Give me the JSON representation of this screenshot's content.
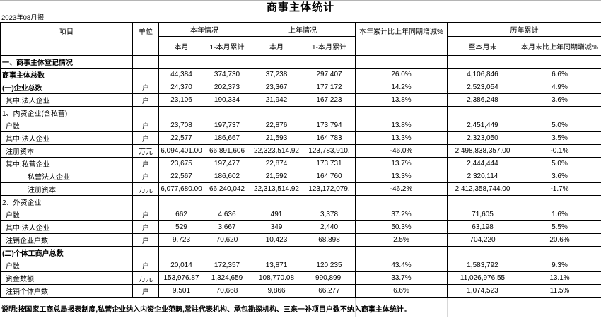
{
  "page": {
    "title": "商事主体统计",
    "period": "2023年08月报",
    "note": "说明:按国家工商总局报表制度,私营企业纳入内资企业范畴,常驻代表机构、承包勘探机构、三来一补项目户数不纳入商事主体统计。"
  },
  "table": {
    "headers": {
      "item": "项目",
      "unit": "单位",
      "this_year": "本年情况",
      "last_year": "上年情况",
      "month": "本月",
      "month_cumulative": "1-本月累计",
      "yoy_change": "本年累计比上年同期增减%",
      "historical": "历年累计",
      "to_month_end": "至本月末",
      "month_end_yoy_change": "本月末比上年同期增减%"
    },
    "rows": [
      {
        "label": "一、商事主体登记情况",
        "unit": "",
        "values": [
          "",
          "",
          "",
          "",
          "",
          "",
          ""
        ],
        "bold": true,
        "indent": 0
      },
      {
        "label": "商事主体总数",
        "unit": "",
        "values": [
          "44,384",
          "374,730",
          "37,238",
          "297,407",
          "26.0%",
          "4,106,846",
          "6.6%"
        ],
        "bold": true,
        "indent": 0
      },
      {
        "label": "(一)企业总数",
        "unit": "户",
        "values": [
          "24,370",
          "202,373",
          "23,367",
          "177,172",
          "14.2%",
          "2,523,054",
          "4.9%"
        ],
        "bold": true,
        "indent": 0
      },
      {
        "label": "其中:法人企业",
        "unit": "户",
        "values": [
          "23,106",
          "190,334",
          "21,942",
          "167,223",
          "13.8%",
          "2,386,248",
          "3.6%"
        ],
        "bold": false,
        "indent": 1
      },
      {
        "label": "1、内资企业(含私营)",
        "unit": "",
        "values": [
          "",
          "",
          "",
          "",
          "",
          "",
          ""
        ],
        "bold": false,
        "indent": 0
      },
      {
        "label": "户数",
        "unit": "户",
        "values": [
          "23,708",
          "197,737",
          "22,876",
          "173,794",
          "13.8%",
          "2,451,449",
          "5.0%"
        ],
        "bold": false,
        "indent": 1
      },
      {
        "label": "其中:法人企业",
        "unit": "户",
        "values": [
          "22,577",
          "186,667",
          "21,593",
          "164,783",
          "13.3%",
          "2,323,050",
          "3.5%"
        ],
        "bold": false,
        "indent": 1
      },
      {
        "label": "注册资本",
        "unit": "万元",
        "values": [
          "6,094,401.00",
          "66,891,606",
          "22,323,514.92",
          "123,783,910.",
          "-46.0%",
          "2,498,838,357.00",
          "-0.1%"
        ],
        "bold": false,
        "indent": 1
      },
      {
        "label": "其中:私营企业",
        "unit": "户",
        "values": [
          "23,675",
          "197,477",
          "22,874",
          "173,731",
          "13.7%",
          "2,444,444",
          "5.0%"
        ],
        "bold": false,
        "indent": 1
      },
      {
        "label": "私营法人企业",
        "unit": "户",
        "values": [
          "22,567",
          "186,602",
          "21,592",
          "164,760",
          "13.3%",
          "2,320,114",
          "3.6%"
        ],
        "bold": false,
        "indent": 2
      },
      {
        "label": "注册资本",
        "unit": "万元",
        "values": [
          "6,077,680.00",
          "66,240,042",
          "22,313,514.92",
          "123,172,079.",
          "-46.2%",
          "2,412,358,744.00",
          "-1.7%"
        ],
        "bold": false,
        "indent": 2
      },
      {
        "label": "2、外资企业",
        "unit": "",
        "values": [
          "",
          "",
          "",
          "",
          "",
          "",
          ""
        ],
        "bold": false,
        "indent": 0
      },
      {
        "label": "户数",
        "unit": "户",
        "values": [
          "662",
          "4,636",
          "491",
          "3,378",
          "37.2%",
          "71,605",
          "1.6%"
        ],
        "bold": false,
        "indent": 1
      },
      {
        "label": "其中:法人企业",
        "unit": "户",
        "values": [
          "529",
          "3,667",
          "349",
          "2,440",
          "50.3%",
          "63,198",
          "5.5%"
        ],
        "bold": false,
        "indent": 1
      },
      {
        "label": "注销企业户数",
        "unit": "户",
        "values": [
          "9,723",
          "70,620",
          "10,423",
          "68,898",
          "2.5%",
          "704,220",
          "20.6%"
        ],
        "bold": false,
        "indent": 1
      },
      {
        "label": "(二)个体工商户总数",
        "unit": "",
        "values": [
          "",
          "",
          "",
          "",
          "",
          "",
          ""
        ],
        "bold": true,
        "indent": 0
      },
      {
        "label": "户数",
        "unit": "户",
        "values": [
          "20,014",
          "172,357",
          "13,871",
          "120,235",
          "43.4%",
          "1,583,792",
          "9.3%"
        ],
        "bold": false,
        "indent": 1
      },
      {
        "label": "资金数额",
        "unit": "万元",
        "values": [
          "153,976.87",
          "1,324,659",
          "108,770.08",
          "990,899.",
          "33.7%",
          "11,026,976.55",
          "13.1%"
        ],
        "bold": false,
        "indent": 1
      },
      {
        "label": "注销个体户数",
        "unit": "户",
        "values": [
          "9,501",
          "70,668",
          "9,866",
          "66,277",
          "6.6%",
          "1,074,523",
          "11.5%"
        ],
        "bold": false,
        "indent": 1
      }
    ]
  },
  "colors": {
    "table_border": "#000000",
    "faint_grid": "#d7d7d7",
    "top_strip": "#b4b4b4",
    "title_rule": "#9a9a9a"
  }
}
